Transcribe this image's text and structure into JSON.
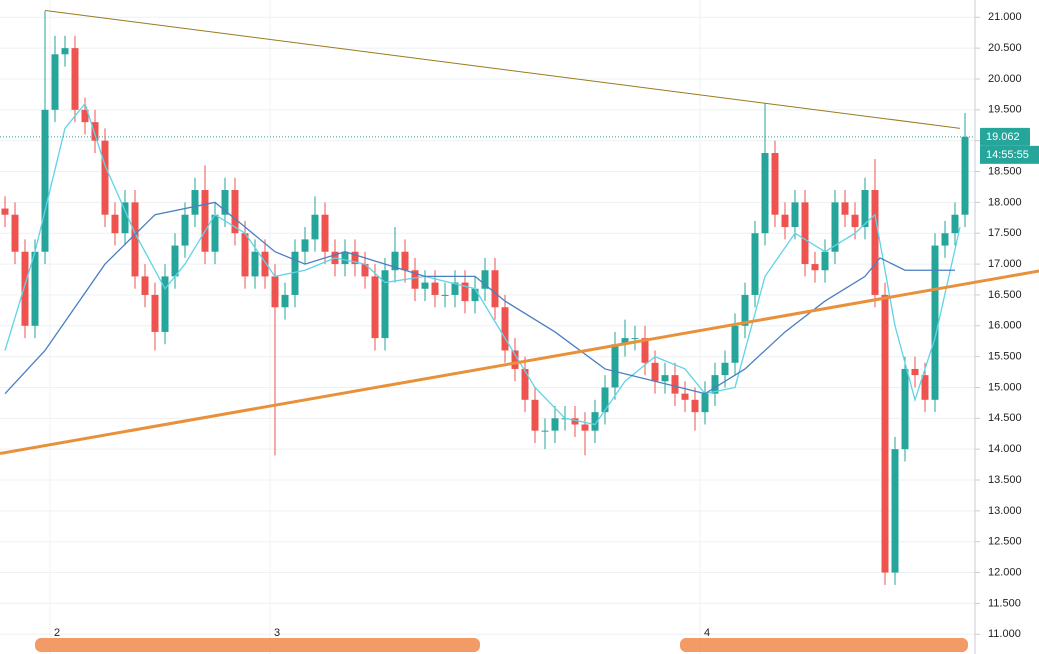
{
  "chart_data": {
    "type": "candlestick",
    "up_color": "#26a69a",
    "down_color": "#ef5350",
    "grid": true,
    "open": [
      17.9,
      17.8,
      17.2,
      16.0,
      17.2,
      19.5,
      20.4,
      20.5,
      19.5,
      19.3,
      19.0,
      17.8,
      17.5,
      18.0,
      16.8,
      16.5,
      15.9,
      16.8,
      17.3,
      17.8,
      18.2,
      17.2,
      17.8,
      18.2,
      17.5,
      16.8,
      17.2,
      16.8,
      16.3,
      16.5,
      17.2,
      17.4,
      17.8,
      17.2,
      17.0,
      17.2,
      17.0,
      16.8,
      15.8,
      16.9,
      17.2,
      16.9,
      16.6,
      16.7,
      16.5,
      16.5,
      16.7,
      16.4,
      16.6,
      16.9,
      16.3,
      15.6,
      15.3,
      14.8,
      14.3,
      14.3,
      14.5,
      14.5,
      14.4,
      14.3,
      14.6,
      15.0,
      15.7,
      15.8,
      15.8,
      15.4,
      15.1,
      15.2,
      14.9,
      14.8,
      14.6,
      14.9,
      15.2,
      15.4,
      16.0,
      16.5,
      17.5,
      18.8,
      17.8,
      17.6,
      18.0,
      17.0,
      16.9,
      17.2,
      18.0,
      17.8,
      17.6,
      18.2,
      16.5,
      12.0,
      14.0,
      15.3,
      15.2,
      14.8,
      17.3,
      17.5,
      17.8
    ],
    "high": [
      18.1,
      18.0,
      17.4,
      17.4,
      21.1,
      20.7,
      20.7,
      20.7,
      19.7,
      19.5,
      19.2,
      18.0,
      18.2,
      18.2,
      17.0,
      16.7,
      17.0,
      17.5,
      18.0,
      18.4,
      18.6,
      18.0,
      18.4,
      18.4,
      17.7,
      17.4,
      17.4,
      17.0,
      16.7,
      17.4,
      17.6,
      18.1,
      18.0,
      17.4,
      17.4,
      17.4,
      17.2,
      17.0,
      17.1,
      17.6,
      17.4,
      17.1,
      16.9,
      16.9,
      16.7,
      16.9,
      16.9,
      16.8,
      17.1,
      17.1,
      16.5,
      15.8,
      15.5,
      15.0,
      14.5,
      14.7,
      14.7,
      14.7,
      14.6,
      14.8,
      15.2,
      15.9,
      16.1,
      16.0,
      16.0,
      15.6,
      15.4,
      15.4,
      15.1,
      15.0,
      15.1,
      15.4,
      15.6,
      16.2,
      16.7,
      17.7,
      19.6,
      19.0,
      18.0,
      18.2,
      18.2,
      17.2,
      17.4,
      18.2,
      18.2,
      18.0,
      18.4,
      18.7,
      16.7,
      14.2,
      15.5,
      15.5,
      15.4,
      17.5,
      17.7,
      18.0,
      19.45
    ],
    "low": [
      17.6,
      17.0,
      15.8,
      15.8,
      17.0,
      19.3,
      20.2,
      19.3,
      19.1,
      18.8,
      17.6,
      17.3,
      17.3,
      16.6,
      16.3,
      15.6,
      15.7,
      16.6,
      17.1,
      17.6,
      17.0,
      17.0,
      17.6,
      17.3,
      16.6,
      16.6,
      16.6,
      13.9,
      16.1,
      16.3,
      17.0,
      17.2,
      17.0,
      16.8,
      16.8,
      16.8,
      16.6,
      15.6,
      15.6,
      16.7,
      16.7,
      16.4,
      16.4,
      16.3,
      16.3,
      16.3,
      16.2,
      16.2,
      16.4,
      16.1,
      15.4,
      15.1,
      14.6,
      14.1,
      14.0,
      14.1,
      14.3,
      14.2,
      13.9,
      14.1,
      14.4,
      14.8,
      15.5,
      15.6,
      15.2,
      14.9,
      14.9,
      14.7,
      14.6,
      14.3,
      14.4,
      14.7,
      15.0,
      15.2,
      15.8,
      16.3,
      17.3,
      17.6,
      17.4,
      17.4,
      16.8,
      16.7,
      16.7,
      17.0,
      17.6,
      17.4,
      17.4,
      16.3,
      11.8,
      11.8,
      13.8,
      15.0,
      14.6,
      14.6,
      17.1,
      17.3,
      17.6
    ],
    "close": [
      17.8,
      17.2,
      16.0,
      17.2,
      19.5,
      20.4,
      20.5,
      19.5,
      19.3,
      19.0,
      17.8,
      17.5,
      18.0,
      16.8,
      16.5,
      15.9,
      16.8,
      17.3,
      17.8,
      18.2,
      17.2,
      17.8,
      18.2,
      17.5,
      16.8,
      17.2,
      16.8,
      16.3,
      16.5,
      17.2,
      17.4,
      17.8,
      17.2,
      17.0,
      17.2,
      17.0,
      16.8,
      15.8,
      16.9,
      17.2,
      16.9,
      16.6,
      16.7,
      16.5,
      16.5,
      16.7,
      16.4,
      16.6,
      16.9,
      16.3,
      15.6,
      15.3,
      14.8,
      14.3,
      14.3,
      14.5,
      14.5,
      14.4,
      14.3,
      14.6,
      15.0,
      15.7,
      15.8,
      15.8,
      15.4,
      15.1,
      15.2,
      14.9,
      14.8,
      14.6,
      14.9,
      15.2,
      15.4,
      16.0,
      16.5,
      17.5,
      18.8,
      17.8,
      17.6,
      18.0,
      17.0,
      16.9,
      17.2,
      18.0,
      17.8,
      17.6,
      18.2,
      16.5,
      12.0,
      14.0,
      15.3,
      15.2,
      14.8,
      17.3,
      17.5,
      17.8,
      19.062
    ],
    "series": [
      {
        "color": "#5fd3e8",
        "x": [
          0,
          3,
          6,
          8,
          10,
          13,
          16,
          18,
          21,
          24,
          27,
          30,
          33,
          36,
          38,
          42,
          47,
          50,
          53,
          56,
          59,
          62,
          65,
          68,
          70,
          73,
          76,
          79,
          82,
          85,
          87,
          89,
          91,
          93,
          95.5
        ],
        "values": [
          15.6,
          17.2,
          19.2,
          19.6,
          18.6,
          17.5,
          16.6,
          17.0,
          17.8,
          17.5,
          16.8,
          16.9,
          17.1,
          17.0,
          16.7,
          16.8,
          16.6,
          15.8,
          15.0,
          14.5,
          14.4,
          15.1,
          15.5,
          15.3,
          14.9,
          15.0,
          16.8,
          17.5,
          17.2,
          17.5,
          17.8,
          16.0,
          14.8,
          15.8,
          17.6
        ]
      },
      {
        "color": "#4a7fc1",
        "x": [
          0,
          4,
          10,
          15,
          21,
          24,
          27,
          30,
          34,
          38,
          42,
          47,
          50,
          55,
          60,
          65,
          70,
          74,
          78,
          82,
          86,
          87.5,
          90,
          95
        ],
        "values": [
          14.9,
          15.6,
          17.0,
          17.8,
          18.0,
          17.6,
          17.2,
          17.0,
          17.2,
          17.0,
          16.8,
          16.8,
          16.4,
          15.9,
          15.3,
          15.1,
          14.9,
          15.3,
          15.9,
          16.4,
          16.8,
          17.1,
          16.9,
          16.9
        ]
      }
    ],
    "trendlines": [
      {
        "color": "#9a7a1e",
        "width": 1,
        "x": [
          4,
          95.5
        ],
        "values": [
          21.11,
          19.2
        ]
      },
      {
        "color": "#e8913a",
        "width": 3,
        "x": [
          -0.5,
          103.5
        ],
        "values": [
          13.93,
          16.89
        ]
      }
    ],
    "last_price": 19.062,
    "last_time": "14:55:55",
    "xticks": [
      {
        "value": 4.5,
        "label": "2"
      },
      {
        "value": 26.5,
        "label": "3"
      },
      {
        "value": 69.5,
        "label": "4"
      }
    ],
    "ylim": [
      10.68,
      21.28
    ],
    "yticks": [
      {
        "value": 11,
        "label": "11.000"
      },
      {
        "value": 11.5,
        "label": "11.500"
      },
      {
        "value": 12,
        "label": "12.000"
      },
      {
        "value": 12.5,
        "label": "12.500"
      },
      {
        "value": 13,
        "label": "13.000"
      },
      {
        "value": 13.5,
        "label": "13.500"
      },
      {
        "value": 14,
        "label": "14.000"
      },
      {
        "value": 14.5,
        "label": "14.500"
      },
      {
        "value": 15,
        "label": "15.000"
      },
      {
        "value": 15.5,
        "label": "15.500"
      },
      {
        "value": 16,
        "label": "16.000"
      },
      {
        "value": 16.5,
        "label": "16.500"
      },
      {
        "value": 17,
        "label": "17.000"
      },
      {
        "value": 17.5,
        "label": "17.500"
      },
      {
        "value": 18,
        "label": "18.000"
      },
      {
        "value": 18.5,
        "label": "18.500"
      },
      {
        "value": 19,
        "label": "19.000"
      },
      {
        "value": 19.5,
        "label": "19.500"
      },
      {
        "value": 20,
        "label": "20.000"
      },
      {
        "value": 20.5,
        "label": "20.500"
      },
      {
        "value": 21,
        "label": "21.000"
      }
    ]
  }
}
